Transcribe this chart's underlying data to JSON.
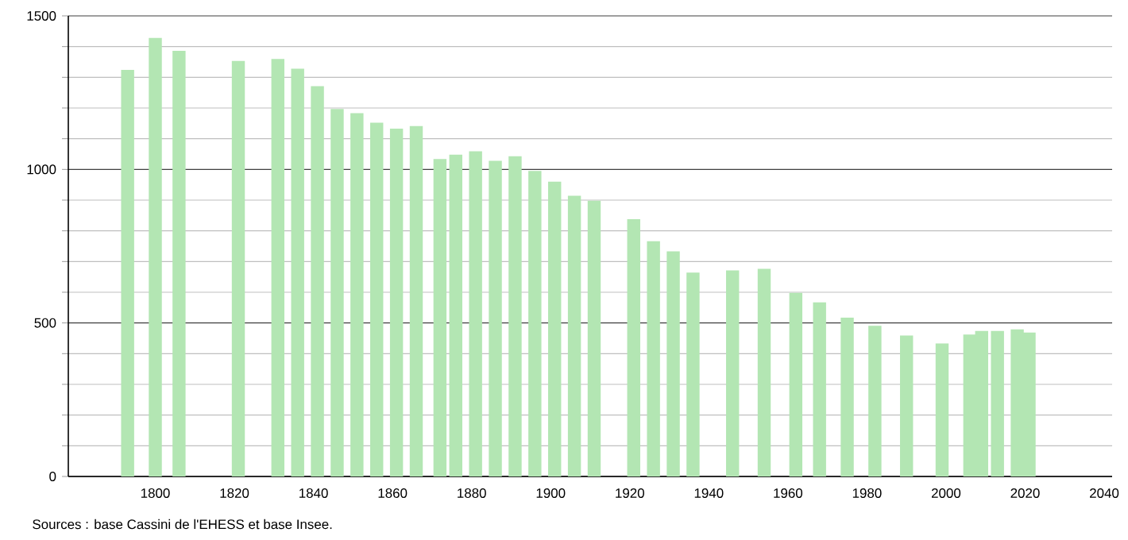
{
  "chart_data": {
    "type": "bar",
    "color": "#b3e6b3",
    "x": [
      1793,
      1800,
      1806,
      1821,
      1831,
      1836,
      1841,
      1846,
      1851,
      1856,
      1861,
      1866,
      1872,
      1876,
      1881,
      1886,
      1891,
      1896,
      1901,
      1906,
      1911,
      1921,
      1926,
      1931,
      1936,
      1946,
      1954,
      1962,
      1968,
      1975,
      1982,
      1990,
      1999,
      2006,
      2009,
      2013,
      2018,
      2021
    ],
    "values": [
      1324,
      1428,
      1386,
      1353,
      1360,
      1328,
      1271,
      1197,
      1183,
      1152,
      1133,
      1141,
      1034,
      1048,
      1059,
      1028,
      1043,
      995,
      960,
      914,
      898,
      838,
      766,
      733,
      664,
      671,
      676,
      598,
      567,
      517,
      491,
      459,
      433,
      462,
      474,
      474,
      479,
      469
    ],
    "xlim": [
      1778,
      2042
    ],
    "xticks": [
      1800,
      1820,
      1840,
      1860,
      1880,
      1900,
      1920,
      1940,
      1960,
      1980,
      2000,
      2020,
      2040
    ],
    "ylim": [
      0,
      1500
    ],
    "yticks": [
      0,
      {
        "value": 100,
        "label": null
      },
      {
        "value": 200,
        "label": null
      },
      {
        "value": 300,
        "label": null
      },
      {
        "value": 400,
        "label": null
      },
      500,
      {
        "value": 600,
        "label": null
      },
      {
        "value": 700,
        "label": null
      },
      {
        "value": 800,
        "label": null
      },
      {
        "value": 900,
        "label": null
      },
      1000,
      {
        "value": 1100,
        "label": null
      },
      {
        "value": 1200,
        "label": null
      },
      {
        "value": 1300,
        "label": null
      },
      {
        "value": 1400,
        "label": null
      },
      1500
    ],
    "grid": "y",
    "annotations": [
      "Sources : base Cassini de l'EHESS et base Insee."
    ]
  }
}
